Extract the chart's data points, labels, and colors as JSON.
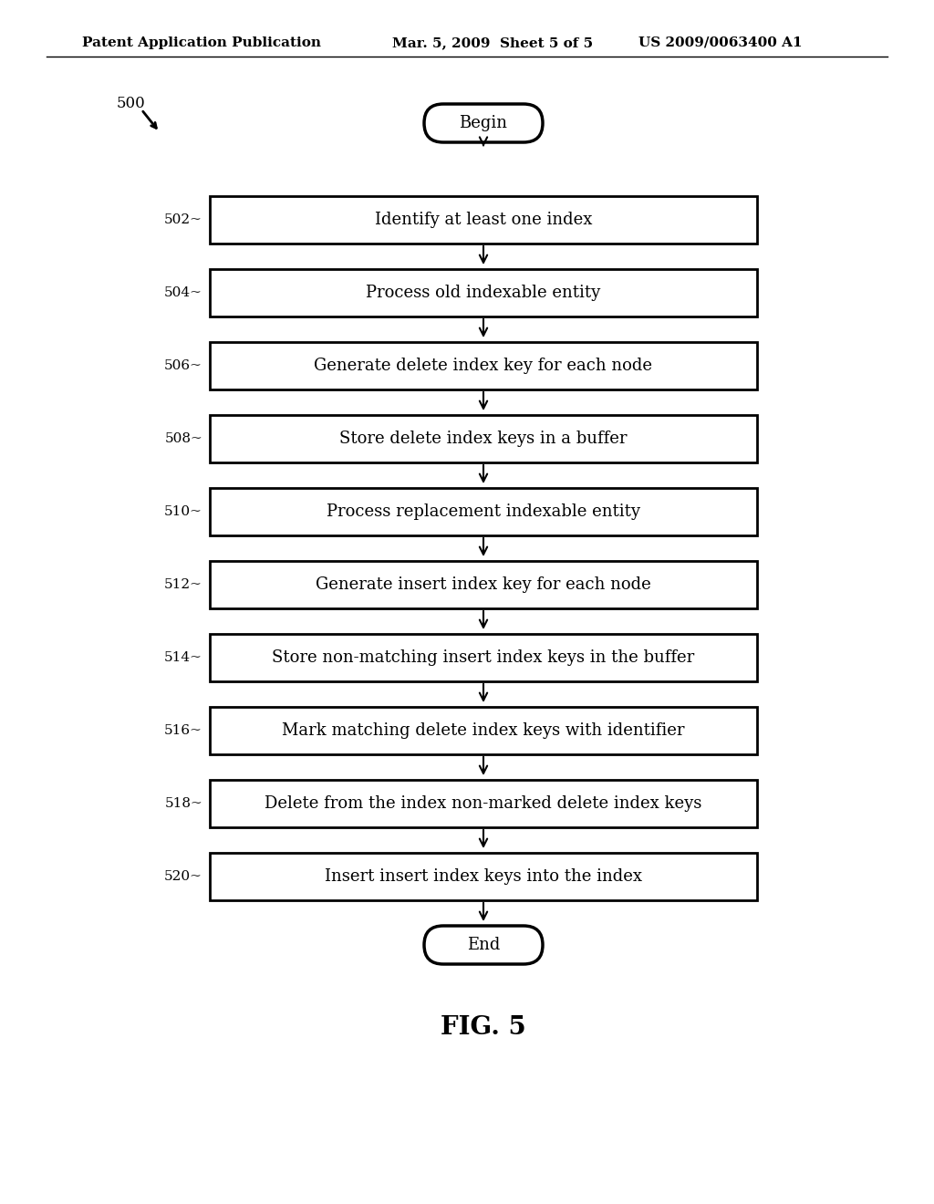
{
  "header_left": "Patent Application Publication",
  "header_mid": "Mar. 5, 2009  Sheet 5 of 5",
  "header_right": "US 2009/0063400 A1",
  "fig_label": "FIG. 5",
  "diagram_label": "500",
  "steps": [
    {
      "id": "502",
      "text": "Identify at least one index"
    },
    {
      "id": "504",
      "text": "Process old indexable entity"
    },
    {
      "id": "506",
      "text": "Generate delete index key for each node"
    },
    {
      "id": "508",
      "text": "Store delete index keys in a buffer"
    },
    {
      "id": "510",
      "text": "Process replacement indexable entity"
    },
    {
      "id": "512",
      "text": "Generate insert index key for each node"
    },
    {
      "id": "514",
      "text": "Store non-matching insert index keys in the buffer"
    },
    {
      "id": "516",
      "text": "Mark matching delete index keys with identifier"
    },
    {
      "id": "518",
      "text": "Delete from the index non-marked delete index keys"
    },
    {
      "id": "520",
      "text": "Insert insert index keys into the index"
    }
  ],
  "begin_text": "Begin",
  "end_text": "End",
  "bg_color": "#ffffff",
  "box_edge_color": "#000000",
  "text_color": "#000000",
  "arrow_color": "#000000",
  "header_fontsize": 11,
  "step_fontsize": 13,
  "label_fontsize": 11,
  "fig_label_fontsize": 20,
  "diagram_label_fontsize": 12
}
